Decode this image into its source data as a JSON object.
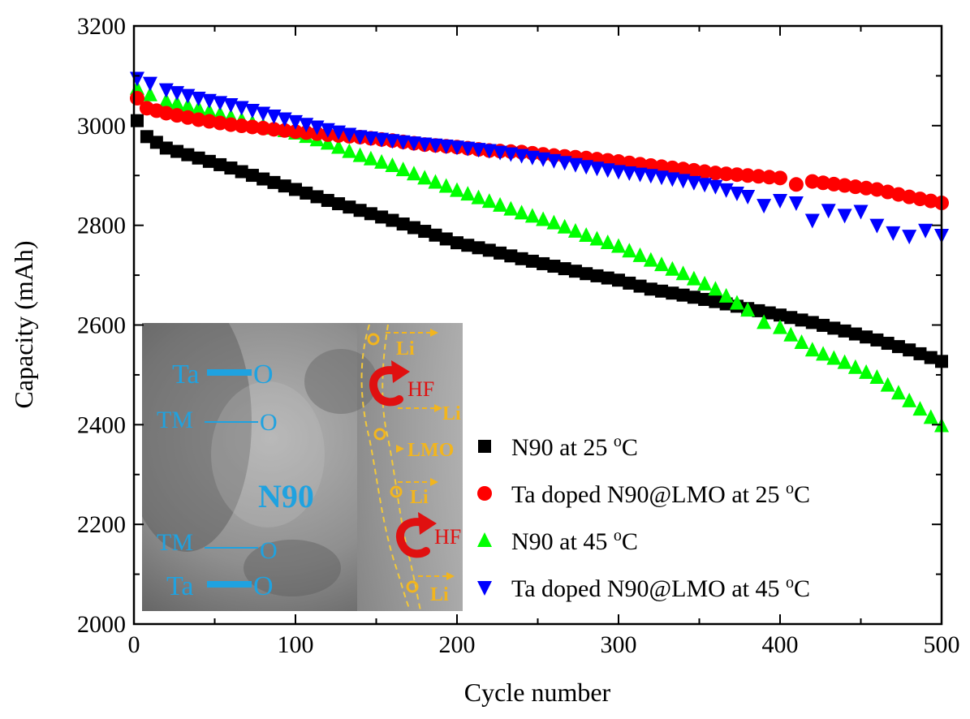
{
  "chart_data": {
    "type": "scatter",
    "xlabel": "Cycle number",
    "ylabel": "Capacity (mAh)",
    "xlim": [
      0,
      500
    ],
    "ylim": [
      2000,
      3200
    ],
    "xticks": [
      "0",
      "100",
      "200",
      "300",
      "400",
      "500"
    ],
    "yticks": [
      "2000",
      "2200",
      "2400",
      "2600",
      "2800",
      "3000",
      "3200"
    ],
    "grid": false,
    "legend_position": "bottom-right",
    "series": [
      {
        "name": "N90 at 25 °C",
        "legend_main": "N90 at 25 ",
        "legend_sup": "o",
        "legend_tail": "C",
        "marker": "square",
        "color": "#000000",
        "points": [
          [
            2,
            3010
          ],
          [
            8,
            2978
          ],
          [
            20,
            2955
          ],
          [
            40,
            2935
          ],
          [
            60,
            2915
          ],
          [
            80,
            2893
          ],
          [
            100,
            2872
          ],
          [
            120,
            2850
          ],
          [
            140,
            2830
          ],
          [
            160,
            2810
          ],
          [
            180,
            2788
          ],
          [
            200,
            2765
          ],
          [
            220,
            2750
          ],
          [
            240,
            2733
          ],
          [
            260,
            2718
          ],
          [
            280,
            2703
          ],
          [
            300,
            2690
          ],
          [
            320,
            2672
          ],
          [
            340,
            2660
          ],
          [
            360,
            2647
          ],
          [
            380,
            2633
          ],
          [
            400,
            2620
          ],
          [
            420,
            2605
          ],
          [
            440,
            2588
          ],
          [
            460,
            2570
          ],
          [
            480,
            2550
          ],
          [
            500,
            2527
          ]
        ]
      },
      {
        "name": "Ta doped N90@LMO at 25 °C",
        "legend_main": "Ta doped N90@LMO at 25 ",
        "legend_sup": "o",
        "legend_tail": "C",
        "marker": "circle",
        "color": "#ff0000",
        "points": [
          [
            2,
            3055
          ],
          [
            8,
            3035
          ],
          [
            20,
            3025
          ],
          [
            40,
            3012
          ],
          [
            60,
            3002
          ],
          [
            80,
            2995
          ],
          [
            100,
            2988
          ],
          [
            120,
            2982
          ],
          [
            140,
            2977
          ],
          [
            160,
            2970
          ],
          [
            180,
            2962
          ],
          [
            200,
            2957
          ],
          [
            220,
            2950
          ],
          [
            240,
            2947
          ],
          [
            260,
            2940
          ],
          [
            280,
            2935
          ],
          [
            300,
            2928
          ],
          [
            320,
            2920
          ],
          [
            340,
            2913
          ],
          [
            360,
            2905
          ],
          [
            380,
            2900
          ],
          [
            400,
            2895
          ],
          [
            410,
            2882
          ],
          [
            420,
            2888
          ],
          [
            440,
            2880
          ],
          [
            460,
            2872
          ],
          [
            480,
            2857
          ],
          [
            500,
            2845
          ]
        ]
      },
      {
        "name": "N90 at 45 °C",
        "legend_main": "N90 at 45 ",
        "legend_sup": "o",
        "legend_tail": "C",
        "marker": "triangle-up",
        "color": "#00ff00",
        "points": [
          [
            2,
            3075
          ],
          [
            10,
            3062
          ],
          [
            20,
            3050
          ],
          [
            40,
            3035
          ],
          [
            60,
            3018
          ],
          [
            80,
            3000
          ],
          [
            100,
            2985
          ],
          [
            120,
            2965
          ],
          [
            140,
            2940
          ],
          [
            160,
            2920
          ],
          [
            180,
            2895
          ],
          [
            200,
            2870
          ],
          [
            220,
            2848
          ],
          [
            240,
            2825
          ],
          [
            260,
            2805
          ],
          [
            280,
            2780
          ],
          [
            300,
            2758
          ],
          [
            320,
            2730
          ],
          [
            340,
            2703
          ],
          [
            360,
            2672
          ],
          [
            380,
            2630
          ],
          [
            390,
            2605
          ],
          [
            400,
            2595
          ],
          [
            420,
            2550
          ],
          [
            440,
            2525
          ],
          [
            460,
            2495
          ],
          [
            480,
            2448
          ],
          [
            500,
            2398
          ]
        ]
      },
      {
        "name": "Ta doped N90@LMO at 45 °C",
        "legend_main": "Ta doped N90@LMO at 45 ",
        "legend_sup": "o",
        "legend_tail": "C",
        "marker": "triangle-down",
        "color": "#0000ff",
        "points": [
          [
            2,
            3095
          ],
          [
            10,
            3085
          ],
          [
            20,
            3072
          ],
          [
            40,
            3055
          ],
          [
            60,
            3042
          ],
          [
            80,
            3025
          ],
          [
            100,
            3008
          ],
          [
            120,
            2992
          ],
          [
            140,
            2978
          ],
          [
            160,
            2970
          ],
          [
            180,
            2963
          ],
          [
            200,
            2957
          ],
          [
            220,
            2950
          ],
          [
            240,
            2940
          ],
          [
            260,
            2930
          ],
          [
            280,
            2918
          ],
          [
            300,
            2908
          ],
          [
            320,
            2900
          ],
          [
            340,
            2890
          ],
          [
            360,
            2878
          ],
          [
            380,
            2858
          ],
          [
            390,
            2840
          ],
          [
            400,
            2850
          ],
          [
            410,
            2845
          ],
          [
            420,
            2810
          ],
          [
            430,
            2830
          ],
          [
            440,
            2820
          ],
          [
            450,
            2828
          ],
          [
            460,
            2800
          ],
          [
            470,
            2785
          ],
          [
            480,
            2778
          ],
          [
            490,
            2790
          ],
          [
            500,
            2780
          ]
        ]
      }
    ]
  },
  "inset": {
    "bonds": [
      {
        "left": "Ta",
        "right": "O",
        "type": "thick"
      },
      {
        "left": "TM",
        "right": "O",
        "type": "thin"
      },
      {
        "left": "TM",
        "right": "O",
        "type": "thin"
      },
      {
        "left": "Ta",
        "right": "O",
        "type": "thick"
      }
    ],
    "center_label": "N90",
    "surface_labels": [
      "Li",
      "Li",
      "LMO",
      "Li",
      "Li"
    ],
    "attack_labels": [
      "HF",
      "HF"
    ],
    "colors": {
      "bond": "#1fa2e0",
      "surface": "#f2b51e",
      "attack": "#e01010"
    }
  }
}
